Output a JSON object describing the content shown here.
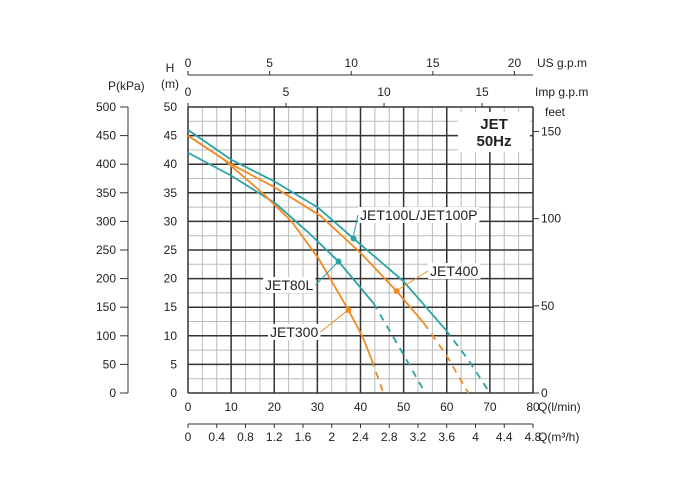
{
  "chart_data": {
    "type": "line",
    "title": "JET 50Hz",
    "title_lines": [
      "JET",
      "50Hz"
    ],
    "xlabel": "Q(l/min)",
    "ylabel_left": "H (m)",
    "ylabel_left_lines": [
      "H",
      "(m)"
    ],
    "ylabel_pressure": "P(kPa)",
    "ylabel_right": "feet",
    "xlim": [
      0,
      80
    ],
    "ylim": [
      0,
      50
    ],
    "x_ticks": [
      0,
      10,
      20,
      30,
      40,
      50,
      60,
      70,
      80
    ],
    "y_ticks": [
      0,
      5,
      10,
      15,
      20,
      25,
      30,
      35,
      40,
      45,
      50
    ],
    "pressure_ticks": [
      0,
      50,
      100,
      150,
      200,
      250,
      300,
      350,
      400,
      450,
      500
    ],
    "feet_ticks": [
      0,
      50,
      100,
      150
    ],
    "us_gpm": {
      "label": "US g.p.m",
      "ticks": [
        0,
        5,
        10,
        15,
        20
      ]
    },
    "imp_gpm": {
      "label": "Imp g.p.m",
      "ticks": [
        0,
        5,
        10,
        15
      ]
    },
    "m3h": {
      "label": "Q(m³/h)",
      "ticks": [
        "0",
        "0.4",
        "0.8",
        "1.2",
        "1.6",
        "2",
        "2.4",
        "2.8",
        "3.2",
        "3.6",
        "4",
        "4.4",
        "4.8"
      ]
    },
    "grid": true,
    "series": [
      {
        "name": "JET100L/JET100P",
        "color": "#2aa3a3",
        "points": [
          [
            0,
            46
          ],
          [
            10,
            40.8
          ],
          [
            20,
            37
          ],
          [
            30,
            32.5
          ],
          [
            38.4,
            27
          ],
          [
            50,
            19.5
          ],
          [
            59.8,
            11
          ]
        ],
        "dashed": [
          [
            59.8,
            11
          ],
          [
            65,
            5.8
          ],
          [
            70,
            0
          ]
        ],
        "marker": [
          38.4,
          27
        ]
      },
      {
        "name": "JET400",
        "color": "#f08a24",
        "points": [
          [
            0,
            45
          ],
          [
            10,
            40
          ],
          [
            20,
            36
          ],
          [
            30.7,
            31
          ],
          [
            40,
            24.5
          ],
          [
            48.4,
            17.8
          ],
          [
            54.7,
            12.2
          ]
        ],
        "dashed": [
          [
            54.7,
            12.2
          ],
          [
            60,
            6.5
          ],
          [
            65,
            0
          ]
        ],
        "marker": [
          48.4,
          17.8
        ]
      },
      {
        "name": "JET80L",
        "color": "#2aa3a3",
        "points": [
          [
            0,
            42
          ],
          [
            10,
            38
          ],
          [
            20.2,
            33.2
          ],
          [
            28,
            28
          ],
          [
            34.9,
            23
          ],
          [
            43,
            15.7
          ]
        ],
        "dashed": [
          [
            43,
            15.7
          ],
          [
            49,
            8
          ],
          [
            55,
            0
          ]
        ],
        "marker": [
          34.9,
          23
        ]
      },
      {
        "name": "JET300",
        "color": "#f08a24",
        "points": [
          [
            0,
            45
          ],
          [
            8,
            41
          ],
          [
            17.2,
            35
          ],
          [
            24,
            30
          ],
          [
            30.2,
            23.6
          ],
          [
            37.2,
            14.5
          ],
          [
            40.5,
            9.8
          ],
          [
            42.6,
            5.8
          ]
        ],
        "dashed": [
          [
            42.6,
            5.8
          ],
          [
            45.3,
            0
          ]
        ],
        "marker": [
          37.2,
          14.5
        ]
      }
    ]
  }
}
